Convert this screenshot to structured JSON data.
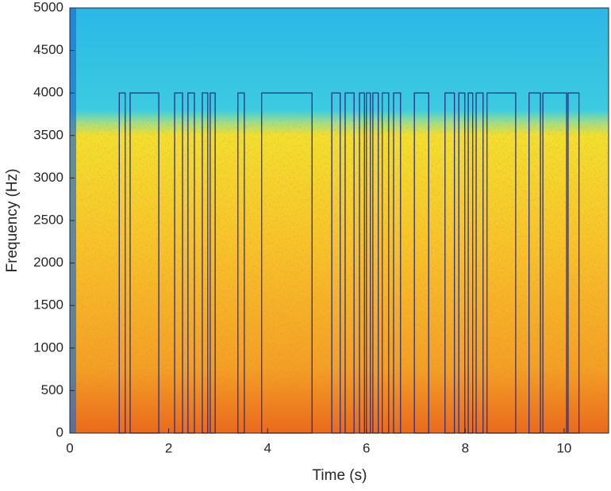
{
  "chart_data": {
    "type": "spectrogram",
    "xlabel": "Time (s)",
    "ylabel": "Frequency (Hz)",
    "xlim": [
      0,
      10.9
    ],
    "xticks": [
      0,
      2,
      4,
      6,
      8,
      10
    ],
    "ylim": [
      0,
      5000
    ],
    "yticks": [
      0,
      500,
      1000,
      1500,
      2000,
      2500,
      3000,
      3500,
      4000,
      4500,
      5000
    ],
    "segment_color": "#2a2f86",
    "segment_top": 4000,
    "segments": {
      "start": [
        1.0,
        1.22,
        2.12,
        2.39,
        2.68,
        2.84,
        3.4,
        3.88,
        5.3,
        5.57,
        5.86,
        6.0,
        6.13,
        6.32,
        6.55,
        6.97,
        7.59,
        7.87,
        8.06,
        8.22,
        8.44,
        9.29,
        9.57,
        10.08
      ],
      "end": [
        1.12,
        1.8,
        2.28,
        2.52,
        2.79,
        2.94,
        3.53,
        4.9,
        5.47,
        5.75,
        5.96,
        6.08,
        6.24,
        6.45,
        6.69,
        7.26,
        7.78,
        7.99,
        8.15,
        8.36,
        9.02,
        9.52,
        10.05,
        10.3
      ]
    }
  }
}
